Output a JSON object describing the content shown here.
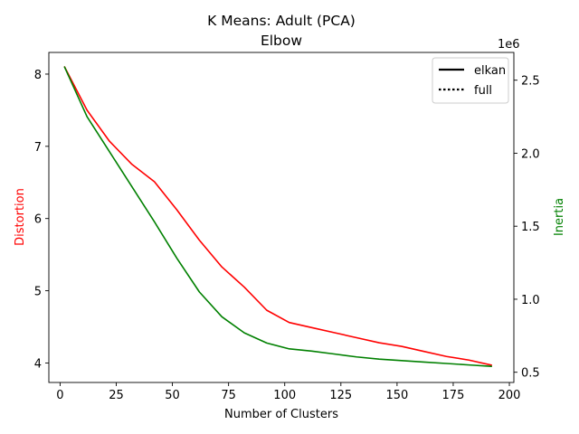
{
  "chart_data": {
    "type": "line",
    "title_line1": "K Means: Adult (PCA)",
    "title_line2": "Elbow",
    "xlabel": "Number of Clusters",
    "ylabel_left": "Distortion",
    "ylabel_right": "Inertia",
    "right_axis_multiplier": "1e6",
    "xlim": [
      -5,
      202
    ],
    "ylim_left": [
      3.73,
      8.3
    ],
    "ylim_right": [
      0.43,
      2.69
    ],
    "x_ticks": [
      "0",
      "25",
      "50",
      "75",
      "100",
      "125",
      "150",
      "175",
      "200"
    ],
    "y_left_ticks": [
      "4",
      "5",
      "6",
      "7",
      "8"
    ],
    "y_right_ticks": [
      "0.5",
      "1.0",
      "1.5",
      "2.0",
      "2.5"
    ],
    "x": [
      2,
      12,
      22,
      32,
      42,
      52,
      62,
      72,
      82,
      92,
      102,
      112,
      122,
      132,
      142,
      152,
      162,
      172,
      182,
      192
    ],
    "series": [
      {
        "axis": "left",
        "color": "#ff0000",
        "values": [
          8.1,
          7.5,
          7.07,
          6.75,
          6.51,
          6.12,
          5.7,
          5.33,
          5.05,
          4.73,
          4.56,
          4.49,
          4.42,
          4.35,
          4.28,
          4.23,
          4.16,
          4.09,
          4.04,
          3.97
        ]
      },
      {
        "axis": "right",
        "color": "#008000",
        "values": [
          2.59,
          2.25,
          2.01,
          1.77,
          1.53,
          1.28,
          1.05,
          0.88,
          0.77,
          0.7,
          0.66,
          0.645,
          0.625,
          0.605,
          0.59,
          0.58,
          0.57,
          0.56,
          0.55,
          0.54
        ]
      }
    ],
    "legend": {
      "position": "top-right",
      "entries": [
        {
          "label": "elkan",
          "style": "solid"
        },
        {
          "label": "full",
          "style": "dotted"
        }
      ]
    },
    "grid": false
  }
}
